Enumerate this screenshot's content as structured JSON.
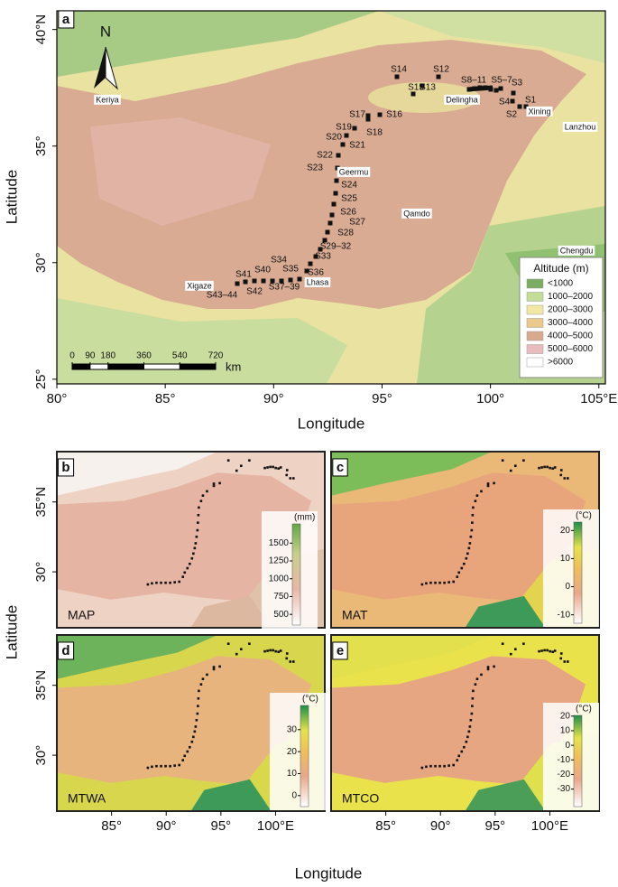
{
  "panel_a": {
    "letter": "a",
    "north": "N",
    "xlim": [
      80,
      105.3
    ],
    "ylim": [
      24.8,
      40.8
    ],
    "lon_ticks": [
      {
        "value": 80,
        "label": "80°"
      },
      {
        "value": 85,
        "label": "85°"
      },
      {
        "value": 90,
        "label": "90°"
      },
      {
        "value": 95,
        "label": "95°"
      },
      {
        "value": 100,
        "label": "100°"
      },
      {
        "value": 105,
        "label": "105°E"
      }
    ],
    "lat_ticks": [
      {
        "value": 25,
        "label": "25°"
      },
      {
        "value": 30,
        "label": "30°"
      },
      {
        "value": 35,
        "label": "35°"
      },
      {
        "value": 40,
        "label": "40°N"
      }
    ],
    "x_label": "Longitude",
    "y_label": "Latitude",
    "places": [
      "Keriya",
      "Delingha",
      "Xining",
      "Lanzhou",
      "Geermu",
      "Qamdo",
      "Chengdu",
      "Lhasa",
      "Xigaze"
    ],
    "sites": [
      "S1",
      "S2",
      "S3",
      "S4",
      "S5–7",
      "S8–11",
      "S12",
      "S13",
      "S14",
      "S15",
      "S16",
      "S17",
      "S18",
      "S19",
      "S20",
      "S21",
      "S22",
      "S23",
      "S24",
      "S25",
      "S26",
      "S27",
      "S28",
      "S29–32",
      "S33",
      "S34",
      "S35",
      "S36",
      "S37–39",
      "S40",
      "S41",
      "S42",
      "S43–44"
    ],
    "legend": {
      "title": "Altitude (m)",
      "items": [
        {
          "label": "<1000",
          "color": "#7aad62"
        },
        {
          "label": "1000–2000",
          "color": "#c3dc98"
        },
        {
          "label": "2000–3000",
          "color": "#f2e8a4"
        },
        {
          "label": "3000–4000",
          "color": "#ebc98d"
        },
        {
          "label": "4000–5000",
          "color": "#d9a98d"
        },
        {
          "label": "5000–6000",
          "color": "#e8bcbc"
        },
        {
          "label": ">6000",
          "color": "#ffffff"
        }
      ]
    },
    "scale_bar": {
      "ticks": [
        0,
        90,
        180,
        360,
        540,
        720
      ],
      "unit": "km"
    }
  },
  "lower": {
    "xlim": [
      80,
      104.5
    ],
    "ylim": [
      26.0,
      38.6
    ],
    "lon_ticks": [
      {
        "value": 85,
        "label": "85°"
      },
      {
        "value": 90,
        "label": "90°"
      },
      {
        "value": 95,
        "label": "95°"
      },
      {
        "value": 100,
        "label": "100°E"
      }
    ],
    "lat_ticks": [
      {
        "value": 30,
        "label": "30°"
      },
      {
        "value": 35,
        "label": "35°N"
      }
    ],
    "x_label": "Longitude",
    "y_label": "Latitude",
    "panels": [
      {
        "letter": "b",
        "name": "MAP",
        "colorbar": {
          "unit": "(mm)",
          "lim": [
            350,
            1770
          ],
          "ticks": [
            500,
            750,
            1000,
            1250,
            1500
          ]
        }
      },
      {
        "letter": "c",
        "name": "MAT",
        "colorbar": {
          "unit": "(°C)",
          "lim": [
            -13,
            23
          ],
          "ticks": [
            -10,
            0,
            10,
            20
          ]
        }
      },
      {
        "letter": "d",
        "name": "MTWA",
        "colorbar": {
          "unit": "(°C)",
          "lim": [
            -5,
            41
          ],
          "ticks": [
            0,
            10,
            20,
            30
          ]
        }
      },
      {
        "letter": "e",
        "name": "MTCO",
        "colorbar": {
          "unit": "(°C)",
          "lim": [
            -42,
            20.5
          ],
          "ticks": [
            -30,
            -20,
            -10,
            0,
            10,
            20
          ]
        }
      }
    ]
  }
}
